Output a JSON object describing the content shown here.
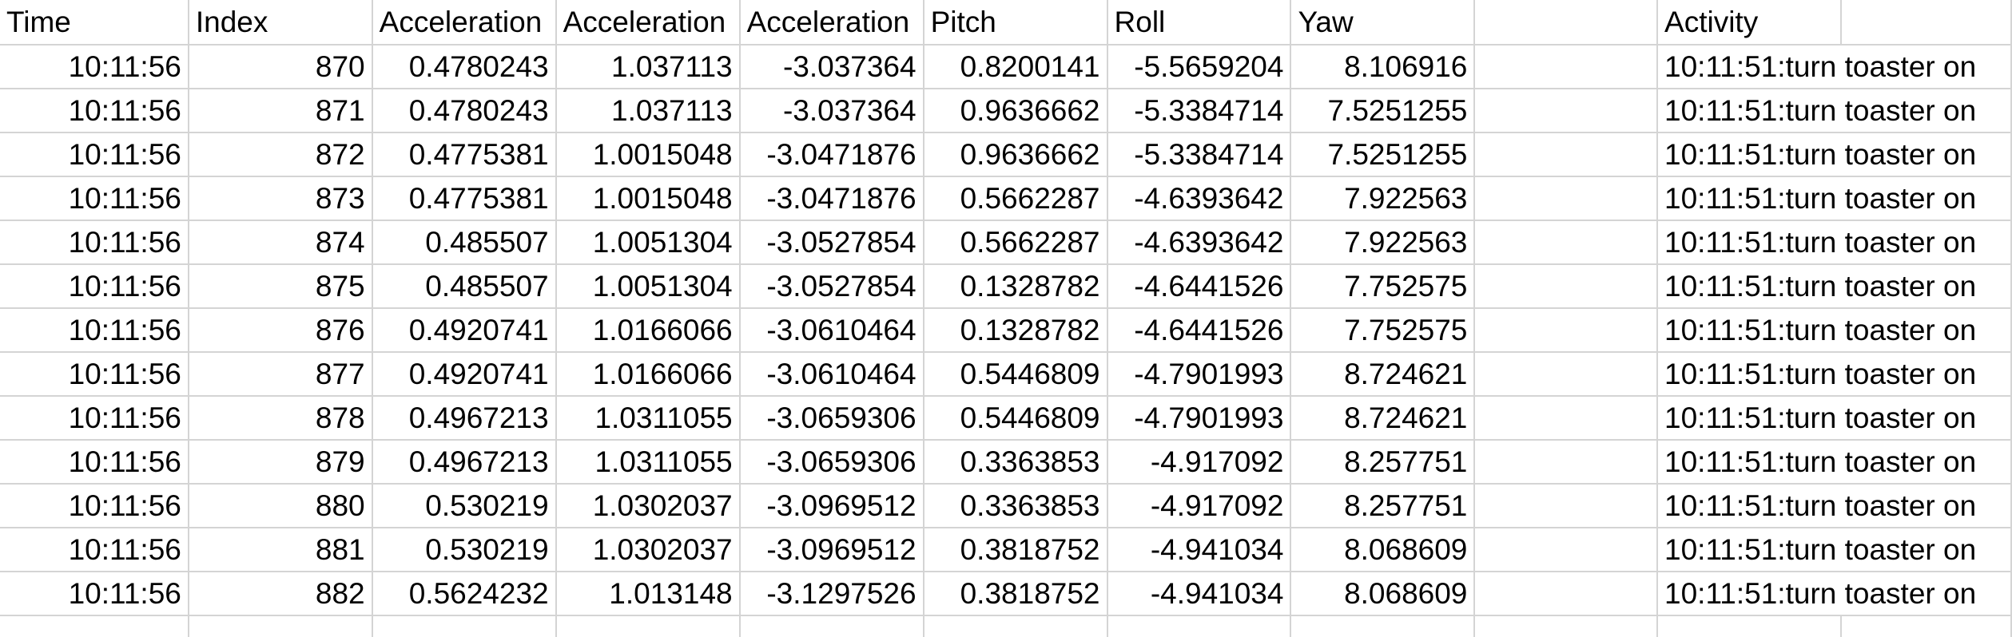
{
  "columns": [
    "Time",
    "Index",
    "Acceleration",
    "Acceleration",
    "Acceleration",
    "Pitch",
    "Roll",
    "Yaw",
    "",
    "Activity",
    ""
  ],
  "rows": [
    {
      "time": "10:11:56",
      "index": "870",
      "acc_x": "0.4780243",
      "acc_y": "1.037113",
      "acc_z": "-3.037364",
      "pitch": "0.8200141",
      "roll": "-5.5659204",
      "yaw": "8.106916",
      "blank": "",
      "activity": "10:11:51:turn toaster on"
    },
    {
      "time": "10:11:56",
      "index": "871",
      "acc_x": "0.4780243",
      "acc_y": "1.037113",
      "acc_z": "-3.037364",
      "pitch": "0.9636662",
      "roll": "-5.3384714",
      "yaw": "7.5251255",
      "blank": "",
      "activity": "10:11:51:turn toaster on"
    },
    {
      "time": "10:11:56",
      "index": "872",
      "acc_x": "0.4775381",
      "acc_y": "1.0015048",
      "acc_z": "-3.0471876",
      "pitch": "0.9636662",
      "roll": "-5.3384714",
      "yaw": "7.5251255",
      "blank": "",
      "activity": "10:11:51:turn toaster on"
    },
    {
      "time": "10:11:56",
      "index": "873",
      "acc_x": "0.4775381",
      "acc_y": "1.0015048",
      "acc_z": "-3.0471876",
      "pitch": "0.5662287",
      "roll": "-4.6393642",
      "yaw": "7.922563",
      "blank": "",
      "activity": "10:11:51:turn toaster on"
    },
    {
      "time": "10:11:56",
      "index": "874",
      "acc_x": "0.485507",
      "acc_y": "1.0051304",
      "acc_z": "-3.0527854",
      "pitch": "0.5662287",
      "roll": "-4.6393642",
      "yaw": "7.922563",
      "blank": "",
      "activity": "10:11:51:turn toaster on"
    },
    {
      "time": "10:11:56",
      "index": "875",
      "acc_x": "0.485507",
      "acc_y": "1.0051304",
      "acc_z": "-3.0527854",
      "pitch": "0.1328782",
      "roll": "-4.6441526",
      "yaw": "7.752575",
      "blank": "",
      "activity": "10:11:51:turn toaster on"
    },
    {
      "time": "10:11:56",
      "index": "876",
      "acc_x": "0.4920741",
      "acc_y": "1.0166066",
      "acc_z": "-3.0610464",
      "pitch": "0.1328782",
      "roll": "-4.6441526",
      "yaw": "7.752575",
      "blank": "",
      "activity": "10:11:51:turn toaster on"
    },
    {
      "time": "10:11:56",
      "index": "877",
      "acc_x": "0.4920741",
      "acc_y": "1.0166066",
      "acc_z": "-3.0610464",
      "pitch": "0.5446809",
      "roll": "-4.7901993",
      "yaw": "8.724621",
      "blank": "",
      "activity": "10:11:51:turn toaster on"
    },
    {
      "time": "10:11:56",
      "index": "878",
      "acc_x": "0.4967213",
      "acc_y": "1.0311055",
      "acc_z": "-3.0659306",
      "pitch": "0.5446809",
      "roll": "-4.7901993",
      "yaw": "8.724621",
      "blank": "",
      "activity": "10:11:51:turn toaster on"
    },
    {
      "time": "10:11:56",
      "index": "879",
      "acc_x": "0.4967213",
      "acc_y": "1.0311055",
      "acc_z": "-3.0659306",
      "pitch": "0.3363853",
      "roll": "-4.917092",
      "yaw": "8.257751",
      "blank": "",
      "activity": "10:11:51:turn toaster on"
    },
    {
      "time": "10:11:56",
      "index": "880",
      "acc_x": "0.530219",
      "acc_y": "1.0302037",
      "acc_z": "-3.0969512",
      "pitch": "0.3363853",
      "roll": "-4.917092",
      "yaw": "8.257751",
      "blank": "",
      "activity": "10:11:51:turn toaster on"
    },
    {
      "time": "10:11:56",
      "index": "881",
      "acc_x": "0.530219",
      "acc_y": "1.0302037",
      "acc_z": "-3.0969512",
      "pitch": "0.3818752",
      "roll": "-4.941034",
      "yaw": "8.068609",
      "blank": "",
      "activity": "10:11:51:turn toaster on"
    },
    {
      "time": "10:11:56",
      "index": "882",
      "acc_x": "0.5624232",
      "acc_y": "1.013148",
      "acc_z": "-3.1297526",
      "pitch": "0.3818752",
      "roll": "-4.941034",
      "yaw": "8.068609",
      "blank": "",
      "activity": "10:11:51:turn toaster on"
    }
  ],
  "colors": {
    "gridline": "#d4d4d4",
    "text": "#000000",
    "background": "#ffffff"
  }
}
